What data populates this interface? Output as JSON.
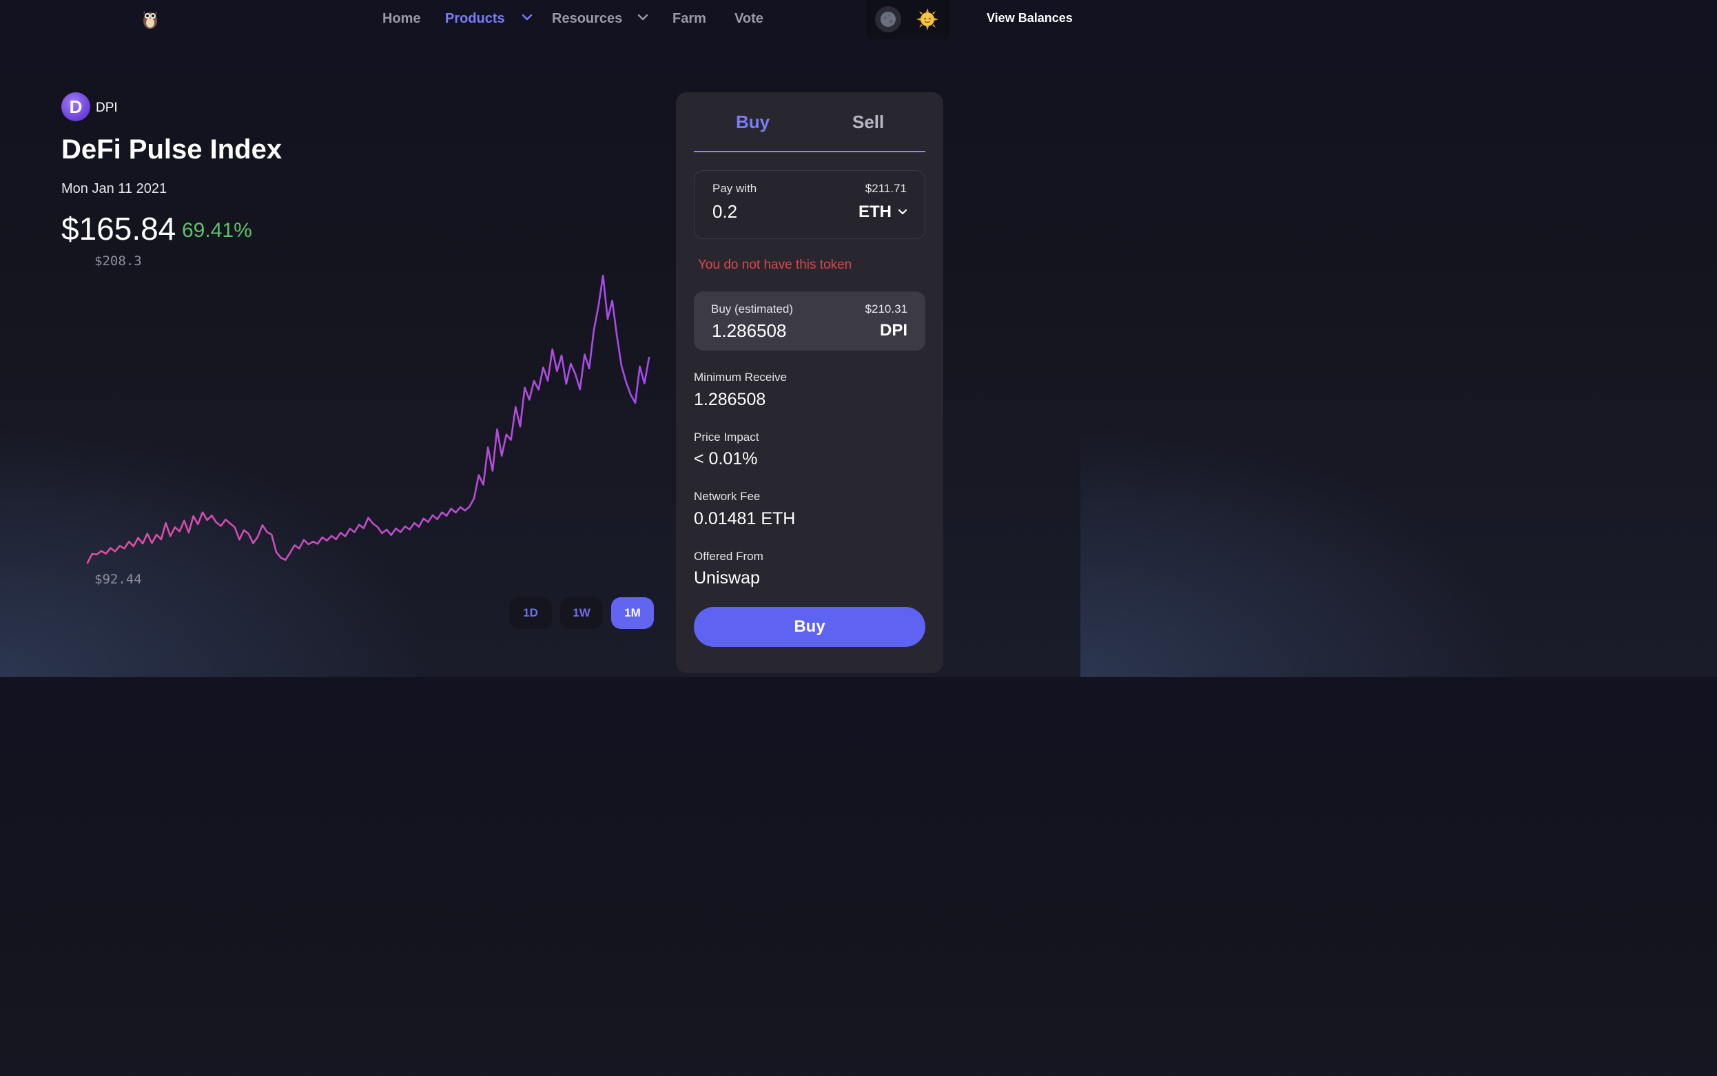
{
  "nav": {
    "items": [
      "Home",
      "Products",
      "Resources",
      "Farm",
      "Vote"
    ],
    "active": "Products",
    "view_balances": "View Balances"
  },
  "token": {
    "icon_letter": "D",
    "symbol": "DPI",
    "name": "DeFi Pulse Index",
    "date": "Mon Jan 11 2021",
    "price": "$165.84",
    "change": "69.41%",
    "chart_max_label": "$208.3",
    "chart_min_label": "$92.44"
  },
  "range": {
    "options": [
      "1D",
      "1W",
      "1M"
    ],
    "selected": "1M"
  },
  "trade": {
    "tabs": [
      "Buy",
      "Sell"
    ],
    "active_tab": "Buy",
    "pay_label": "Pay with",
    "pay_usd": "$211.71",
    "pay_amount": "0.2",
    "pay_token": "ETH",
    "error": "You do not have this token",
    "buy_est_label": "Buy (estimated)",
    "buy_est_usd": "$210.31",
    "buy_est_amount": "1.286508",
    "buy_token": "DPI",
    "min_receive_label": "Minimum Receive",
    "min_receive": "1.286508",
    "price_impact_label": "Price Impact",
    "price_impact": "< 0.01%",
    "network_fee_label": "Network Fee",
    "network_fee": "0.01481 ETH",
    "offered_from_label": "Offered From",
    "offered_from": "Uniswap",
    "buy_button": "Buy"
  },
  "colors": {
    "accent": "#6265f0",
    "positive": "#5ec16c",
    "error": "#e0474b",
    "line_start": "#e04f9f",
    "line_end": "#a44cf0"
  },
  "chart_data": {
    "type": "line",
    "x_range": "1M",
    "ylim": [
      92.44,
      208.3
    ],
    "series": [
      {
        "values": [
          92.4,
          96.0,
          95.8,
          97.2,
          96.1,
          98.4,
          97.0,
          99.3,
          98.2,
          101.0,
          99.1,
          102.5,
          100.2,
          104.2,
          100.4,
          103.8,
          101.9,
          108.5,
          103.2,
          106.8,
          105.1,
          109.4,
          104.6,
          111.3,
          108.0,
          112.8,
          109.7,
          111.5,
          108.7,
          107.3,
          109.9,
          108.3,
          106.7,
          101.8,
          105.6,
          104.1,
          100.3,
          103.0,
          107.6,
          104.9,
          103.8,
          96.8,
          94.5,
          93.6,
          96.4,
          99.5,
          98.2,
          101.7,
          99.9,
          101.0,
          100.1,
          102.7,
          101.4,
          103.3,
          101.9,
          104.6,
          103.1,
          106.2,
          104.8,
          107.8,
          106.4,
          110.6,
          108.3,
          106.9,
          104.4,
          105.8,
          103.6,
          106.3,
          104.8,
          107.1,
          105.9,
          108.5,
          107.0,
          110.3,
          108.9,
          111.6,
          110.0,
          112.8,
          111.4,
          114.3,
          112.7,
          114.9,
          113.5,
          115.1,
          118.5,
          127.8,
          124.0,
          139.0,
          129.5,
          146.3,
          135.6,
          144.2,
          142.0,
          155.3,
          147.4,
          163.1,
          158.2,
          165.8,
          162.3,
          171.2,
          165.9,
          178.6,
          169.7,
          176.1,
          164.6,
          172.8,
          168.5,
          162.4,
          176.5,
          170.8,
          186.1,
          195.9,
          208.3,
          190.7,
          198.2,
          184.3,
          172.0,
          165.4,
          160.3,
          156.9,
          171.6,
          164.8,
          175.2
        ]
      }
    ]
  }
}
